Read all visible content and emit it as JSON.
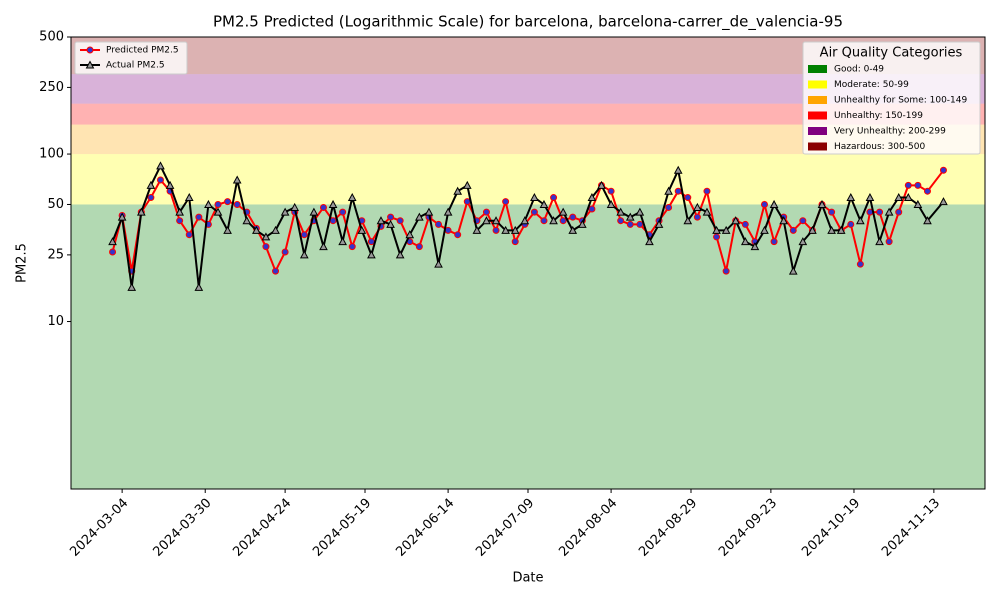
{
  "chart_data": {
    "type": "line",
    "title": "PM2.5 Predicted (Logarithmic Scale) for barcelona, barcelona-carrer_de_valencia-95",
    "x_label": "Date",
    "y_label": "PM2.5",
    "log_scale": true,
    "xlim": [
      "2024-02-17",
      "2024-11-29"
    ],
    "xticks": [
      "2024-03-04",
      "2024-03-30",
      "2024-04-24",
      "2024-05-19",
      "2024-06-14",
      "2024-07-09",
      "2024-08-04",
      "2024-08-29",
      "2024-09-23",
      "2024-10-19",
      "2024-11-13"
    ],
    "ylim": [
      1,
      500
    ],
    "yticks": [
      10,
      25,
      50,
      100,
      250,
      500
    ],
    "legend": "upper left",
    "x": [
      "2024-03-01",
      "2024-03-04",
      "2024-03-07",
      "2024-03-10",
      "2024-03-13",
      "2024-03-16",
      "2024-03-19",
      "2024-03-22",
      "2024-03-25",
      "2024-03-28",
      "2024-03-31",
      "2024-04-03",
      "2024-04-06",
      "2024-04-09",
      "2024-04-12",
      "2024-04-15",
      "2024-04-18",
      "2024-04-21",
      "2024-04-24",
      "2024-04-27",
      "2024-04-30",
      "2024-05-03",
      "2024-05-06",
      "2024-05-09",
      "2024-05-12",
      "2024-05-15",
      "2024-05-18",
      "2024-05-21",
      "2024-05-24",
      "2024-05-27",
      "2024-05-30",
      "2024-06-02",
      "2024-06-05",
      "2024-06-08",
      "2024-06-11",
      "2024-06-14",
      "2024-06-17",
      "2024-06-20",
      "2024-06-23",
      "2024-06-26",
      "2024-06-29",
      "2024-07-02",
      "2024-07-05",
      "2024-07-08",
      "2024-07-11",
      "2024-07-14",
      "2024-07-17",
      "2024-07-20",
      "2024-07-23",
      "2024-07-26",
      "2024-07-29",
      "2024-08-01",
      "2024-08-04",
      "2024-08-07",
      "2024-08-10",
      "2024-08-13",
      "2024-08-16",
      "2024-08-19",
      "2024-08-22",
      "2024-08-25",
      "2024-08-28",
      "2024-08-31",
      "2024-09-03",
      "2024-09-06",
      "2024-09-09",
      "2024-09-12",
      "2024-09-15",
      "2024-09-18",
      "2024-09-21",
      "2024-09-24",
      "2024-09-27",
      "2024-09-30",
      "2024-10-03",
      "2024-10-06",
      "2024-10-09",
      "2024-10-12",
      "2024-10-15",
      "2024-10-18",
      "2024-10-21",
      "2024-10-24",
      "2024-10-27",
      "2024-10-30",
      "2024-11-02",
      "2024-11-05",
      "2024-11-08",
      "2024-11-11",
      "2024-11-16"
    ],
    "series": [
      {
        "name": "Predicted PM2.5",
        "color": "#ff0000",
        "marker_color": "#3333cc",
        "marker": "circle",
        "values": [
          26,
          43,
          20,
          45,
          55,
          70,
          60,
          40,
          33,
          42,
          38,
          50,
          52,
          50,
          45,
          36,
          28,
          20,
          26,
          45,
          33,
          40,
          48,
          40,
          45,
          28,
          40,
          30,
          37,
          42,
          40,
          30,
          28,
          42,
          38,
          35,
          33,
          52,
          40,
          45,
          35,
          52,
          30,
          38,
          45,
          40,
          55,
          40,
          42,
          40,
          47,
          65,
          60,
          40,
          38,
          38,
          33,
          40,
          48,
          60,
          55,
          42,
          60,
          32,
          20,
          40,
          38,
          30,
          50,
          30,
          42,
          35,
          40,
          35,
          50,
          45,
          35,
          38,
          22,
          45,
          45,
          30,
          45,
          65,
          65,
          60,
          80
        ]
      },
      {
        "name": "Actual PM2.5",
        "color": "#000000",
        "marker_color": "#999999",
        "marker": "triangle",
        "values": [
          30,
          42,
          16,
          45,
          65,
          85,
          65,
          45,
          55,
          16,
          50,
          45,
          35,
          70,
          40,
          35,
          32,
          35,
          45,
          48,
          25,
          45,
          28,
          50,
          30,
          55,
          35,
          25,
          40,
          38,
          25,
          33,
          42,
          45,
          22,
          45,
          60,
          65,
          35,
          40,
          40,
          35,
          35,
          40,
          55,
          50,
          40,
          45,
          35,
          38,
          55,
          65,
          50,
          45,
          42,
          45,
          30,
          38,
          60,
          80,
          40,
          48,
          45,
          35,
          35,
          40,
          30,
          28,
          35,
          50,
          40,
          20,
          30,
          35,
          50,
          35,
          35,
          55,
          40,
          55,
          30,
          45,
          55,
          55,
          50,
          40,
          52
        ]
      }
    ],
    "categories_legend_title": "Air Quality Categories",
    "bands": [
      {
        "name": "Good: 0-49",
        "range": [
          0,
          50
        ],
        "color": "#008000"
      },
      {
        "name": "Moderate: 50-99",
        "range": [
          50,
          100
        ],
        "color": "#ffff00"
      },
      {
        "name": "Unhealthy for Some: 100-149",
        "range": [
          100,
          150
        ],
        "color": "#ffa500"
      },
      {
        "name": "Unhealthy: 150-199",
        "range": [
          150,
          200
        ],
        "color": "#ff0000"
      },
      {
        "name": "Very Unhealthy: 200-299",
        "range": [
          200,
          300
        ],
        "color": "#800080"
      },
      {
        "name": "Hazardous: 300-500",
        "range": [
          300,
          500
        ],
        "color": "#8b0000"
      }
    ]
  }
}
